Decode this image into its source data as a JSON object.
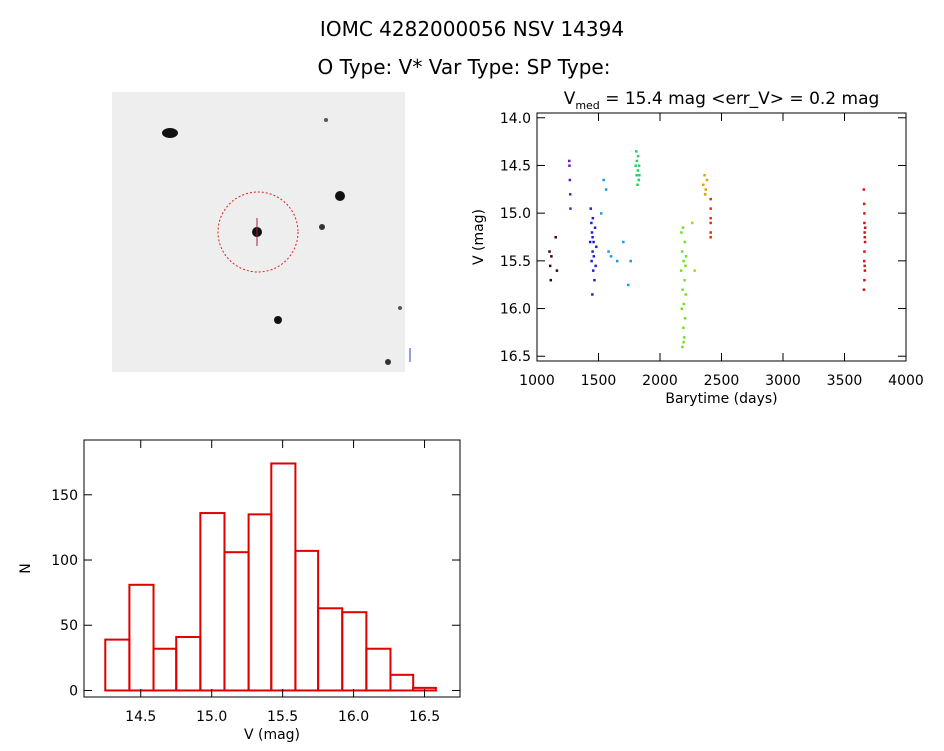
{
  "title": "IOMC 4282000056    NSV 14394",
  "subtitle": "O Type: V*   Var Type:    SP Type:",
  "chart_data": [
    {
      "type": "scatter",
      "title_parts": [
        "V",
        "med",
        " = 15.4 mag <err_V> = 0.2 mag"
      ],
      "xlabel": "Barytime (days)",
      "ylabel": "V (mag)",
      "xlim": [
        1000,
        4000
      ],
      "xticks": [
        1000,
        1500,
        2000,
        2500,
        3000,
        3500,
        4000
      ],
      "ylim": [
        16.55,
        13.95
      ],
      "yticks": [
        {
          "value": 14,
          "label": "14.0"
        },
        14.5,
        {
          "value": 15,
          "label": "15.0"
        },
        15.5,
        {
          "value": 16,
          "label": "16.0"
        },
        16.5
      ],
      "series": [
        {
          "color": "#3a0018",
          "x": [
            1100,
            1105,
            1110,
            1115,
            1150,
            1160
          ],
          "values": [
            15.4,
            15.55,
            15.7,
            15.45,
            15.25,
            15.6
          ]
        },
        {
          "color": "#6a1ab0",
          "x": [
            1260,
            1262,
            1265,
            1268,
            1270
          ],
          "values": [
            14.45,
            14.5,
            14.65,
            14.8,
            14.95
          ]
        },
        {
          "color": "#2020d0",
          "x": [
            1430,
            1435,
            1440,
            1442,
            1445,
            1448,
            1450,
            1452,
            1455,
            1458,
            1460,
            1465,
            1470,
            1475,
            1480,
            1450
          ],
          "values": [
            15.3,
            14.95,
            15.1,
            15.5,
            15.2,
            15.85,
            15.4,
            15.05,
            15.6,
            15.3,
            15.45,
            15.7,
            15.15,
            15.55,
            15.35,
            15.25
          ]
        },
        {
          "color": "#1a9ae0",
          "x": [
            1520,
            1540,
            1560,
            1580,
            1600,
            1650,
            1700,
            1740,
            1760
          ],
          "values": [
            15.0,
            14.65,
            14.75,
            15.4,
            15.45,
            15.5,
            15.3,
            15.75,
            15.5
          ]
        },
        {
          "color": "#20d060",
          "x": [
            1800,
            1805,
            1808,
            1810,
            1815,
            1818,
            1820,
            1825,
            1828,
            1830
          ],
          "values": [
            14.5,
            14.35,
            14.6,
            14.45,
            14.7,
            14.55,
            14.4,
            14.65,
            14.5,
            14.6
          ]
        },
        {
          "color": "#70e020",
          "x": [
            2170,
            2172,
            2175,
            2178,
            2180,
            2182,
            2185,
            2188,
            2190,
            2192,
            2195,
            2198,
            2200,
            2202,
            2205,
            2208,
            2210,
            2190
          ],
          "values": [
            15.6,
            15.2,
            16.0,
            15.4,
            16.4,
            15.8,
            15.15,
            16.2,
            15.5,
            15.95,
            16.3,
            15.7,
            15.3,
            16.1,
            15.55,
            15.85,
            15.45,
            16.35
          ]
        },
        {
          "color": "#c0d000",
          "x": [
            2260,
            2280
          ],
          "values": [
            15.1,
            15.6
          ]
        },
        {
          "color": "#e0a000",
          "x": [
            2350,
            2360,
            2365,
            2370,
            2380
          ],
          "values": [
            14.7,
            14.6,
            14.8,
            14.75,
            14.65
          ]
        },
        {
          "color": "#e03000",
          "x": [
            2410,
            2410,
            2410,
            2410,
            2410,
            2410
          ],
          "values": [
            14.85,
            14.95,
            15.05,
            15.1,
            15.2,
            15.25
          ]
        },
        {
          "color": "#e01010",
          "x": [
            3655,
            3658,
            3660,
            3660,
            3662,
            3663,
            3665,
            3660,
            3658,
            3662,
            3664,
            3660,
            3656,
            3666
          ],
          "values": [
            14.75,
            14.9,
            15.0,
            15.1,
            15.2,
            15.25,
            15.3,
            15.4,
            15.5,
            15.55,
            15.6,
            15.7,
            15.8,
            15.15
          ]
        }
      ]
    },
    {
      "type": "histogram",
      "xlabel": "V (mag)",
      "ylabel": "N",
      "color": "#e00000",
      "bins": [
        14.25,
        14.42,
        14.59,
        14.75,
        14.92,
        15.09,
        15.26,
        15.42,
        15.59,
        15.75,
        15.92,
        16.09,
        16.26,
        16.42,
        16.58
      ],
      "values": [
        39,
        81,
        32,
        41,
        136,
        106,
        135,
        174,
        107,
        63,
        60,
        32,
        12,
        2
      ],
      "xlim": [
        14.1,
        16.75
      ],
      "xticks": [
        14.5,
        {
          "value": 15,
          "label": "15.0"
        },
        15.5,
        {
          "value": 16,
          "label": "16.0"
        },
        16.5
      ],
      "ylim": [
        -5,
        192
      ],
      "yticks": [
        0,
        50,
        100,
        150
      ]
    }
  ]
}
